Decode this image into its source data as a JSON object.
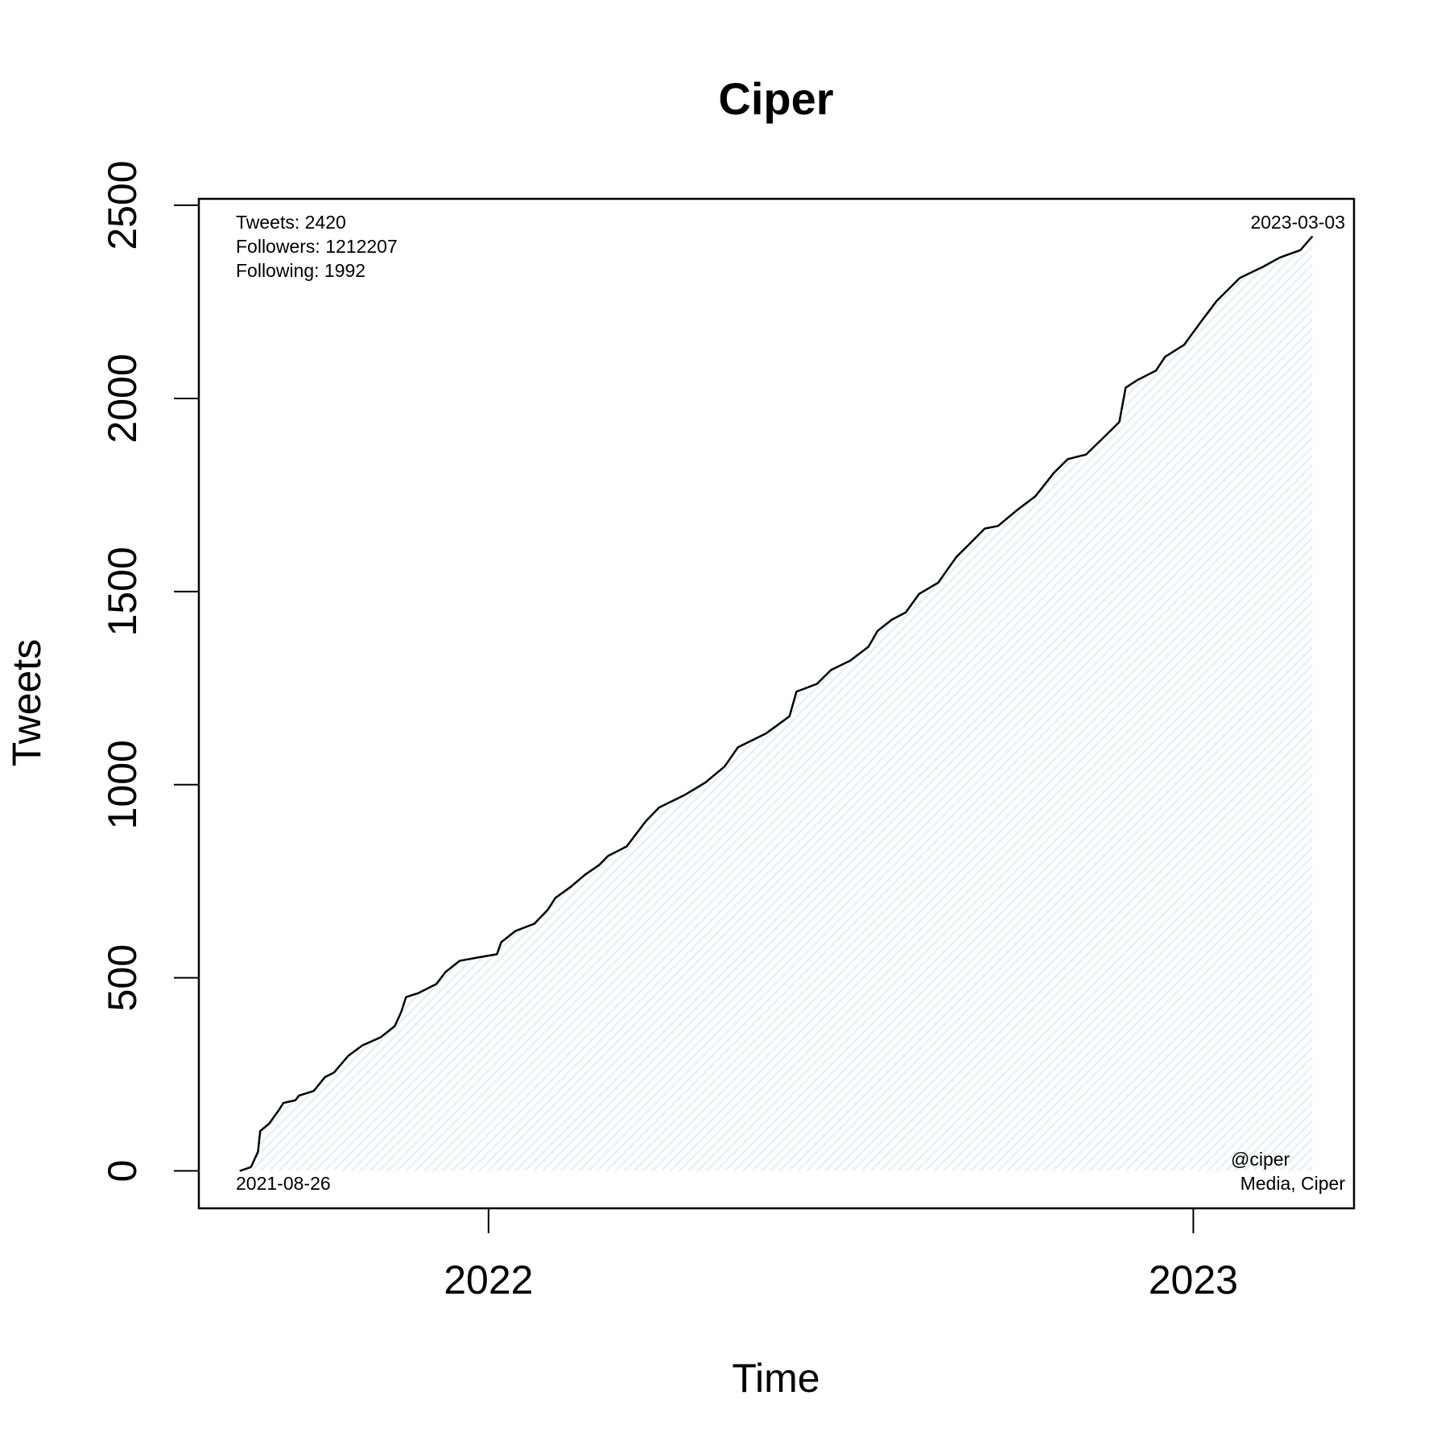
{
  "chart_data": {
    "type": "line",
    "title": "Ciper",
    "x_label": "Time",
    "y_label": "Tweets",
    "xlim": [
      2021.589,
      2023.228
    ],
    "xticks": [
      2022,
      2023
    ],
    "ylim": [
      -96.8,
      2516.8
    ],
    "yticks": [
      0,
      500,
      1000,
      1500,
      2000,
      2500
    ],
    "fill_color": "#e3f1f6",
    "series": [
      {
        "color": "#000000",
        "x": [
          2021.647,
          2021.663,
          2021.673,
          2021.676,
          2021.689,
          2021.702,
          2021.709,
          2021.726,
          2021.731,
          2021.752,
          2021.768,
          2021.781,
          2021.801,
          2021.821,
          2021.847,
          2021.867,
          2021.876,
          2021.883,
          2021.9,
          2021.926,
          2021.939,
          2021.959,
          2021.986,
          2022.012,
          2022.018,
          2022.038,
          2022.065,
          2022.084,
          2022.095,
          2022.117,
          2022.137,
          2022.157,
          2022.17,
          2022.196,
          2022.223,
          2022.242,
          2022.279,
          2022.308,
          2022.335,
          2022.354,
          2022.394,
          2022.427,
          2022.437,
          2022.466,
          2022.486,
          2022.513,
          2022.539,
          2022.552,
          2022.572,
          2022.592,
          2022.611,
          2022.638,
          2022.664,
          2022.684,
          2022.704,
          2022.723,
          2022.75,
          2022.776,
          2022.802,
          2022.822,
          2022.848,
          2022.875,
          2022.895,
          2022.904,
          2022.921,
          2022.947,
          2022.96,
          2022.987,
          2023.013,
          2023.033,
          2023.066,
          2023.099,
          2023.123,
          2023.152,
          2023.169
        ],
        "values": [
          0,
          10,
          50,
          103,
          123,
          156,
          176,
          183,
          195,
          207,
          243,
          255,
          298,
          325,
          346,
          375,
          411,
          450,
          460,
          484,
          515,
          544,
          553,
          561,
          592,
          621,
          640,
          676,
          707,
          736,
          767,
          792,
          816,
          840,
          905,
          941,
          974,
          1006,
          1047,
          1097,
          1133,
          1177,
          1241,
          1261,
          1297,
          1321,
          1357,
          1398,
          1427,
          1446,
          1494,
          1523,
          1590,
          1626,
          1663,
          1670,
          1711,
          1747,
          1807,
          1843,
          1855,
          1903,
          1939,
          2028,
          2048,
          2072,
          2108,
          2139,
          2204,
          2252,
          2312,
          2341,
          2365,
          2384,
          2420
        ]
      }
    ],
    "annotations": [
      "Tweets: 2420",
      "Followers: 1212207",
      "Following: 1992",
      "2023-03-03",
      "2021-08-26",
      "@ciper",
      "Media, Ciper"
    ]
  }
}
